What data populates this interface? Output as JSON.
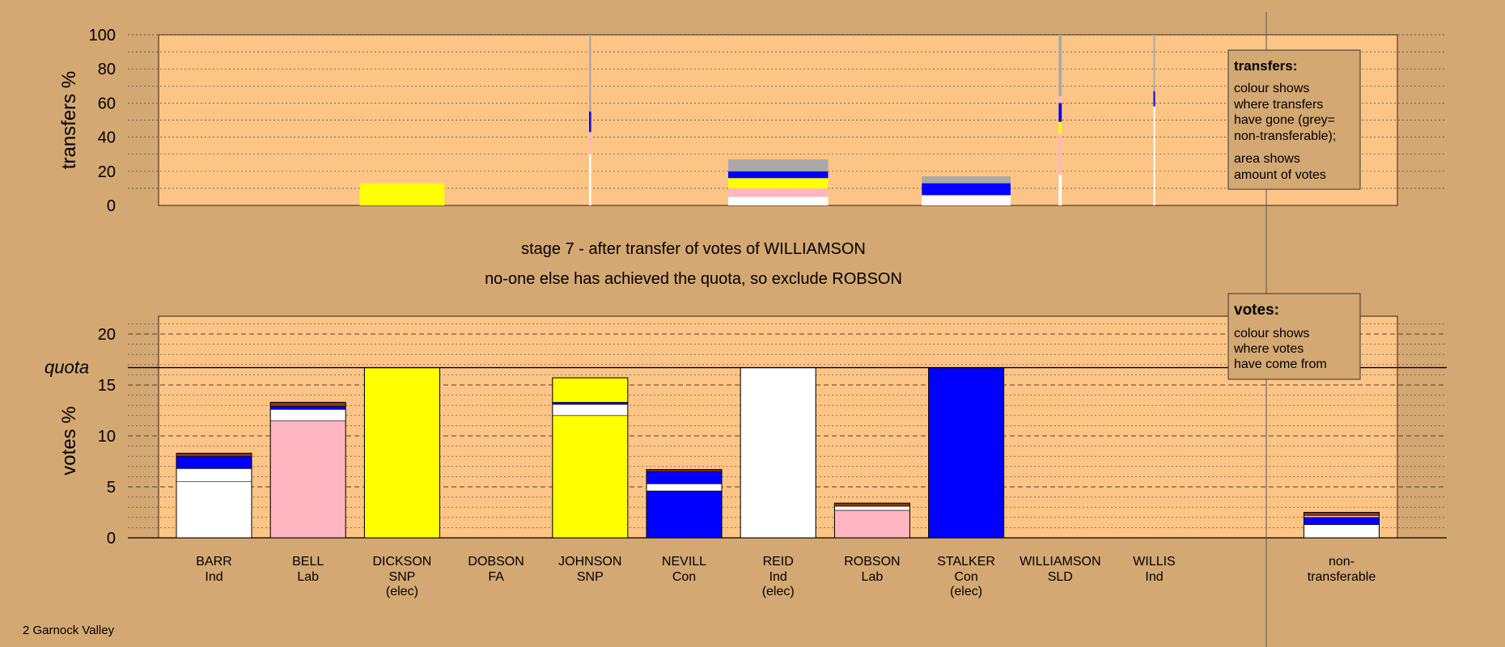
{
  "title_line1": "stage 7 - after transfer of votes of WILLIAMSON",
  "title_line2": "no-one else has achieved the quota, so exclude ROBSON",
  "footer": "2 Garnock Valley",
  "colors": {
    "background": "#d4a872",
    "panel": "#fcc586",
    "Ind": "#ffffff",
    "Lab": "#ffb6c1",
    "SNP": "#ffff00",
    "Con": "#0000ff",
    "SLD": "#8b3a00",
    "nontransferable": "#a9a9a9"
  },
  "legend_transfers": {
    "title": "transfers:",
    "lines": [
      "colour shows",
      "where transfers",
      "have gone (grey=",
      "non-transferable);",
      "area shows",
      "amount of votes"
    ]
  },
  "legend_votes": {
    "title": "votes:",
    "lines": [
      "colour shows",
      "where votes",
      "have come from"
    ]
  },
  "chart_data": [
    {
      "type": "bar",
      "name": "transfers",
      "ylabel": "transfers %",
      "ylim": [
        0,
        100
      ],
      "yticks": [
        0,
        20,
        40,
        60,
        80,
        100
      ],
      "grid": "dotted",
      "bars": [
        {
          "candidate": "DICKSON",
          "width_share": 0.83,
          "segments": [
            {
              "color": "SNP",
              "value": 13
            }
          ]
        },
        {
          "candidate": "JOHNSON",
          "width_share": 0.02,
          "segments": [
            {
              "color": "Ind",
              "value": 30
            },
            {
              "color": "Lab",
              "value": 13
            },
            {
              "color": "Con",
              "value": 12
            },
            {
              "color": "nontransferable",
              "value": 45
            }
          ]
        },
        {
          "candidate": "REID",
          "width_share": 0.98,
          "segments": [
            {
              "color": "Ind",
              "value": 5
            },
            {
              "color": "Lab",
              "value": 5
            },
            {
              "color": "SNP",
              "value": 6
            },
            {
              "color": "Con",
              "value": 4
            },
            {
              "color": "nontransferable",
              "value": 7
            }
          ]
        },
        {
          "candidate": "STALKER",
          "width_share": 0.87,
          "segments": [
            {
              "color": "Ind",
              "value": 6
            },
            {
              "color": "Con",
              "value": 7
            },
            {
              "color": "nontransferable",
              "value": 4
            }
          ]
        },
        {
          "candidate": "WILLIAMSON",
          "width_share": 0.03,
          "segments": [
            {
              "color": "Ind",
              "value": 18
            },
            {
              "color": "Lab",
              "value": 24
            },
            {
              "color": "SNP",
              "value": 7
            },
            {
              "color": "Con",
              "value": 11
            },
            {
              "color": "Lab",
              "value": 4
            },
            {
              "color": "nontransferable",
              "value": 36
            }
          ]
        },
        {
          "candidate": "WILLIS",
          "width_share": 0.015,
          "segments": [
            {
              "color": "Ind",
              "value": 58
            },
            {
              "color": "Con",
              "value": 9
            },
            {
              "color": "nontransferable",
              "value": 33
            }
          ]
        }
      ]
    },
    {
      "type": "bar",
      "name": "votes",
      "ylabel": "votes %",
      "ylim": [
        0,
        22
      ],
      "yticks": [
        0,
        5,
        10,
        15,
        20
      ],
      "quota": 16.7,
      "quota_label": "quota",
      "categories": [
        {
          "name": "BARR",
          "party": "Ind",
          "note": ""
        },
        {
          "name": "BELL",
          "party": "Lab",
          "note": ""
        },
        {
          "name": "DICKSON",
          "party": "SNP",
          "note": "(elec)"
        },
        {
          "name": "DOBSON",
          "party": "FA",
          "note": ""
        },
        {
          "name": "JOHNSON",
          "party": "SNP",
          "note": ""
        },
        {
          "name": "NEVILL",
          "party": "Con",
          "note": ""
        },
        {
          "name": "REID",
          "party": "Ind",
          "note": "(elec)"
        },
        {
          "name": "ROBSON",
          "party": "Lab",
          "note": ""
        },
        {
          "name": "STALKER",
          "party": "Con",
          "note": "(elec)"
        },
        {
          "name": "WILLIAMSON",
          "party": "SLD",
          "note": ""
        },
        {
          "name": "WILLIS",
          "party": "Ind",
          "note": ""
        }
      ],
      "nontransferable_label": [
        "non-",
        "transferable"
      ],
      "stacks": [
        [
          {
            "color": "Ind",
            "value": 5.5
          },
          {
            "color": "Ind",
            "value": 1.3
          },
          {
            "color": "Con",
            "value": 1.2
          },
          {
            "color": "SLD",
            "value": 0.3
          }
        ],
        [
          {
            "color": "Lab",
            "value": 11.5
          },
          {
            "color": "Ind",
            "value": 1.1
          },
          {
            "color": "Con",
            "value": 0.3
          },
          {
            "color": "SLD",
            "value": 0.4
          }
        ],
        [
          {
            "color": "SNP",
            "value": 16.7
          }
        ],
        [],
        [
          {
            "color": "SNP",
            "value": 12
          },
          {
            "color": "Ind",
            "value": 1.1
          },
          {
            "color": "Con",
            "value": 0.2
          },
          {
            "color": "SNP",
            "value": 2.4
          }
        ],
        [
          {
            "color": "Con",
            "value": 4.6
          },
          {
            "color": "Ind",
            "value": 0.7
          },
          {
            "color": "Con",
            "value": 1.2
          },
          {
            "color": "SLD",
            "value": 0.2
          }
        ],
        [
          {
            "color": "Ind",
            "value": 16.7
          }
        ],
        [
          {
            "color": "Lab",
            "value": 2.7
          },
          {
            "color": "Ind",
            "value": 0.4
          },
          {
            "color": "SLD",
            "value": 0.3
          }
        ],
        [
          {
            "color": "Con",
            "value": 16.7
          }
        ],
        [],
        []
      ],
      "nontransferable_stack": [
        {
          "color": "Ind",
          "value": 1.3
        },
        {
          "color": "Con",
          "value": 0.7
        },
        {
          "color": "Lab",
          "value": 0.2
        },
        {
          "color": "SLD",
          "value": 0.3
        }
      ]
    }
  ]
}
